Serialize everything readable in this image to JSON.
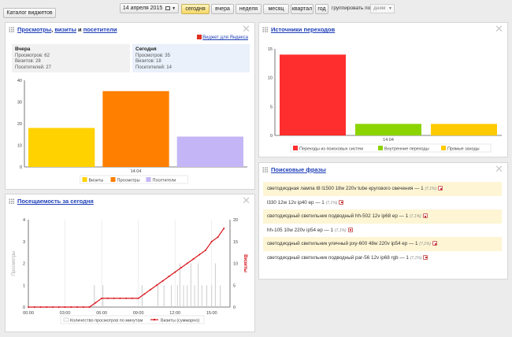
{
  "toolbar": {
    "catalog_label": "Каталог виджетов",
    "date_label": "14 апреля 2015",
    "periods": [
      "сегодня",
      "вчера",
      "неделя",
      "месяц",
      "квартал",
      "год"
    ],
    "selected_period": "сегодня",
    "group_label": "группировать по",
    "group_value": "дням"
  },
  "traffic": {
    "title_part1": "Просмотры",
    "title_sep1": ", ",
    "title_part2": "визиты",
    "title_sep2": " и ",
    "title_part3": "посетители",
    "yandex_link": "Виджет для Яндекса",
    "yesterday": {
      "heading": "Вчера",
      "lines": [
        "Просмотров: 62",
        "Визитов: 28",
        "Посетителей: 27"
      ]
    },
    "today": {
      "heading": "Сегодня",
      "lines": [
        "Просмотров: 35",
        "Визитов: 18",
        "Посетителей: 14"
      ]
    }
  },
  "sources": {
    "title": "Источники переходов"
  },
  "attendance": {
    "title": "Посещаемость за сегодня"
  },
  "phrases": {
    "title": "Поисковые фразы",
    "items": [
      {
        "text": "светодиодная лампа t8 l1500 18w 220v tube кругового свечения — 1",
        "pct": "(7,1%)",
        "highlight": true
      },
      {
        "text": "l330 12w 12v ip40 ep — 1",
        "pct": "(7,1%)",
        "highlight": false
      },
      {
        "text": "светодиодный светильник подводный hh-502 12v ip68 ep — 1",
        "pct": "(7,1%)",
        "highlight": true
      },
      {
        "text": "hh-105 10w 220v ip54 ep — 1",
        "pct": "(7,1%)",
        "highlight": false
      },
      {
        "text": "светодиодный светильник уличный pxy-600 48w 220v ip54 ep — 1",
        "pct": "(7,1%)",
        "highlight": true
      },
      {
        "text": "светодиодный светильник подводный par-56 12v ip68 rgb — 1",
        "pct": "(7,1%)",
        "highlight": false
      }
    ]
  },
  "chart_data": [
    {
      "type": "bar",
      "categories": [
        "14.04"
      ],
      "series": [
        {
          "name": "Визиты",
          "values": [
            18
          ],
          "color": "#ffd200"
        },
        {
          "name": "Просмотры",
          "values": [
            35
          ],
          "color": "#ff7f00"
        },
        {
          "name": "Посетители",
          "values": [
            14
          ],
          "color": "#c4b6f6"
        }
      ],
      "ylim": [
        0,
        40
      ],
      "yticks": [
        0,
        10,
        20,
        30,
        40
      ],
      "legend": "bottom",
      "grid": false
    },
    {
      "type": "bar",
      "categories": [
        "14.04"
      ],
      "series": [
        {
          "name": "Переходы из поисковых систем",
          "values": [
            14
          ],
          "color": "#ff2e2e"
        },
        {
          "name": "Внутренние переходы",
          "values": [
            2
          ],
          "color": "#8cd400"
        },
        {
          "name": "Прямые заходы",
          "values": [
            2
          ],
          "color": "#ffcb00"
        }
      ],
      "ylim": [
        0,
        15
      ],
      "yticks": [
        0,
        5,
        10,
        15
      ],
      "legend": "bottom",
      "grid": false
    },
    {
      "type": "line",
      "ylabel": "Просмотры",
      "y2label": "Визиты",
      "xticks": [
        "00:00",
        "03:00",
        "06:00",
        "09:00",
        "12:00",
        "15:00"
      ],
      "x_hours": [
        0,
        3,
        6,
        9,
        12,
        15
      ],
      "yticks": [
        0,
        1,
        2,
        3,
        4
      ],
      "ylim": [
        0,
        4
      ],
      "y2ticks": [
        0,
        5,
        10,
        15,
        20
      ],
      "y2lim": [
        0,
        20
      ],
      "series": [
        {
          "name": "Количество просмотров по минутам",
          "kind": "bars",
          "color": "#cccccc",
          "hours": [
            5.4,
            6.1,
            9.3,
            10.6,
            11.1,
            11.7,
            12.2,
            12.4,
            12.7,
            13.0,
            13.3,
            13.6,
            13.9,
            14.2,
            14.6,
            15.0,
            15.3,
            15.7
          ],
          "values": [
            1,
            1,
            1,
            1,
            1,
            1,
            1,
            2,
            1,
            1,
            2,
            1,
            2,
            1,
            1,
            1,
            2,
            1
          ]
        },
        {
          "name": "Визиты (суммарно)",
          "kind": "line",
          "color": "#d8141b",
          "hours": [
            0,
            0.5,
            1,
            1.5,
            2,
            2.5,
            3,
            3.5,
            4,
            4.5,
            5,
            5.5,
            6,
            6.5,
            7,
            7.5,
            8,
            8.5,
            9,
            9.5,
            10,
            10.5,
            11,
            11.5,
            12,
            12.5,
            13,
            13.5,
            14,
            14.5,
            15,
            15.5,
            16
          ],
          "values": [
            0,
            0,
            0,
            0,
            0,
            0,
            0,
            0,
            0,
            0,
            0,
            1,
            2,
            2,
            2,
            2,
            2,
            2,
            2,
            3,
            4,
            5,
            6,
            7,
            8,
            9,
            10,
            11,
            12,
            13,
            15,
            16,
            18
          ]
        }
      ],
      "legend": "bottom"
    }
  ]
}
